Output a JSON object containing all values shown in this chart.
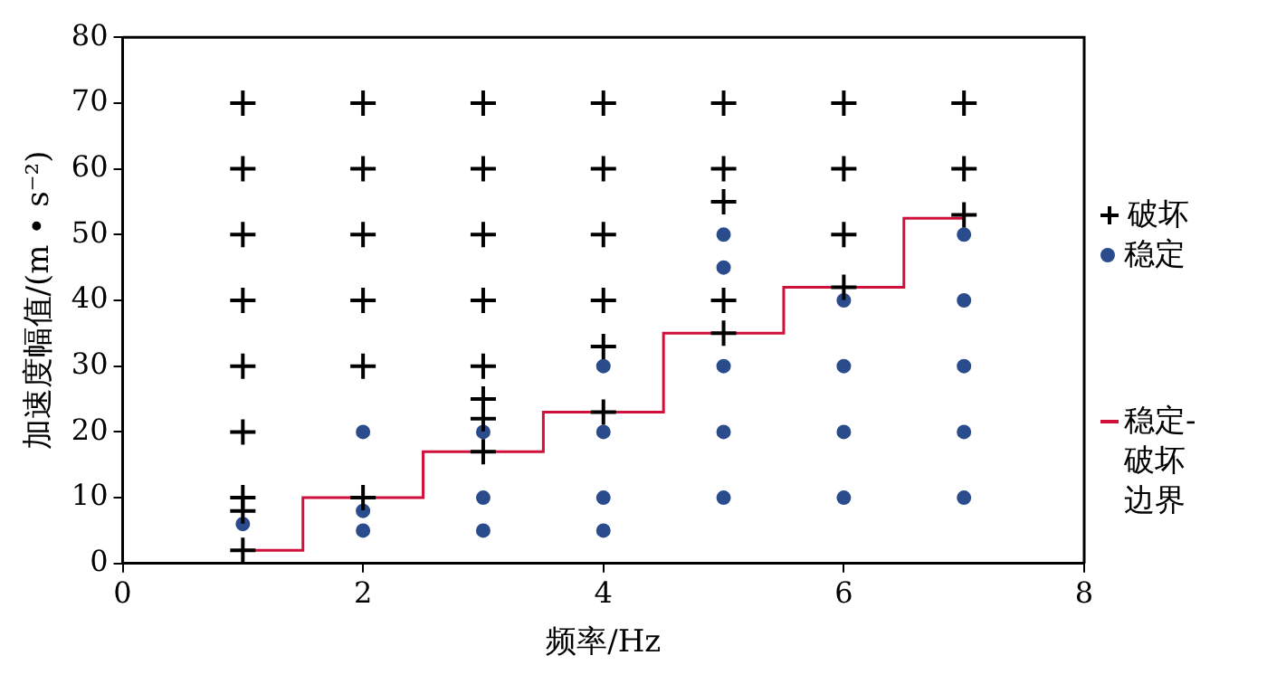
{
  "chart_data": {
    "type": "scatter",
    "xlabel": "频率/Hz",
    "ylabel": "加速度幅值/(m • s⁻²)",
    "xlim": [
      0,
      8
    ],
    "xticks": [
      0,
      2,
      4,
      6,
      8
    ],
    "ylim": [
      0,
      80
    ],
    "yticks": [
      0,
      10,
      20,
      30,
      40,
      50,
      60,
      70,
      80
    ],
    "grid": false,
    "legend": "right",
    "series": [
      {
        "name": "破坏",
        "type": "scatter",
        "marker": "cross",
        "color": "#000000",
        "x": [
          1,
          1,
          1,
          1,
          1,
          1,
          1,
          1,
          1,
          2,
          2,
          2,
          2,
          2,
          2,
          3,
          3,
          3,
          3,
          3,
          3,
          3,
          3,
          4,
          4,
          4,
          4,
          4,
          4,
          5,
          5,
          5,
          5,
          5,
          6,
          6,
          6,
          6,
          7,
          7,
          7
        ],
        "values": [
          70,
          60,
          50,
          40,
          30,
          20,
          10,
          8,
          2,
          70,
          60,
          50,
          40,
          30,
          10,
          70,
          60,
          50,
          40,
          30,
          25,
          22,
          17,
          70,
          60,
          50,
          40,
          33,
          23,
          70,
          60,
          55,
          40,
          35,
          70,
          60,
          50,
          42,
          70,
          60,
          53
        ]
      },
      {
        "name": "稳定",
        "type": "scatter",
        "marker": "circle",
        "color": "#2b4c8c",
        "x": [
          1,
          2,
          2,
          2,
          3,
          3,
          3,
          4,
          4,
          4,
          4,
          5,
          5,
          5,
          5,
          5,
          6,
          6,
          6,
          6,
          7,
          7,
          7,
          7,
          7
        ],
        "values": [
          6,
          20,
          8,
          5,
          20,
          10,
          5,
          30,
          20,
          10,
          5,
          50,
          45,
          30,
          20,
          10,
          40,
          30,
          20,
          10,
          50,
          40,
          30,
          20,
          10
        ]
      },
      {
        "name": "稳定-破坏边界",
        "type": "step",
        "marker": "none",
        "color": "#d0103a",
        "x": [
          1,
          1.5,
          2.5,
          3.5,
          4.5,
          5.5,
          6.5,
          7
        ],
        "values": [
          2,
          10,
          17,
          23,
          35,
          42,
          52.5,
          52.5
        ]
      }
    ]
  }
}
